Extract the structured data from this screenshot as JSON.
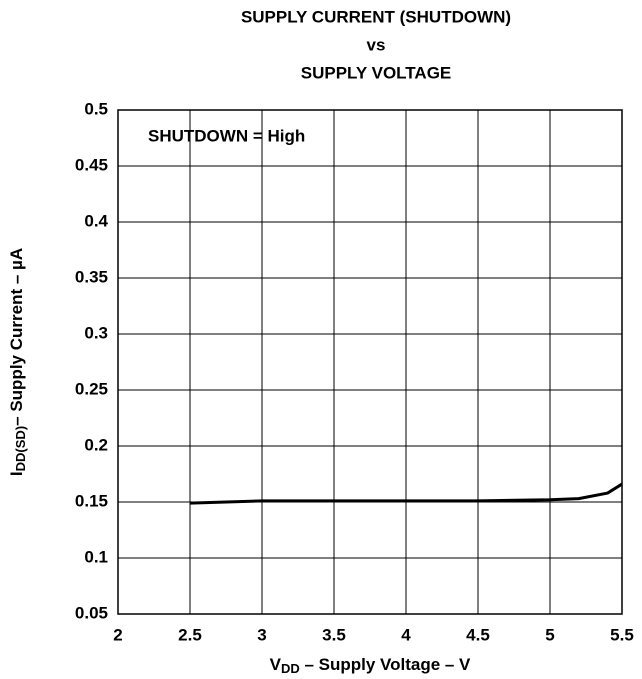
{
  "chart_data": {
    "type": "line",
    "title": [
      "SUPPLY CURRENT (SHUTDOWN)",
      "vs",
      "SUPPLY VOLTAGE"
    ],
    "annotation": "SHUTDOWN = High",
    "x_label": {
      "main": "V",
      "sub": "DD",
      "rest": " – Supply Voltage – V"
    },
    "y_label": {
      "main": "I",
      "sub": "DD(SD)",
      "rest": "– Supply Current – µA"
    },
    "x": [
      2.5,
      3,
      3.5,
      4,
      4.5,
      5,
      5.2,
      5.4,
      5.5
    ],
    "series": [
      {
        "color": "#000000",
        "values": [
          0.149,
          0.151,
          0.151,
          0.151,
          0.151,
          0.152,
          0.153,
          0.158,
          0.166
        ]
      }
    ],
    "xlim": [
      2,
      5.5
    ],
    "xticks": [
      2,
      2.5,
      3,
      3.5,
      4,
      4.5,
      5,
      5.5
    ],
    "ylim": [
      0.05,
      0.5
    ],
    "yticks": [
      0.05,
      0.1,
      0.15,
      0.2,
      0.25,
      0.3,
      0.35,
      0.4,
      0.45,
      0.5
    ],
    "grid": true
  }
}
